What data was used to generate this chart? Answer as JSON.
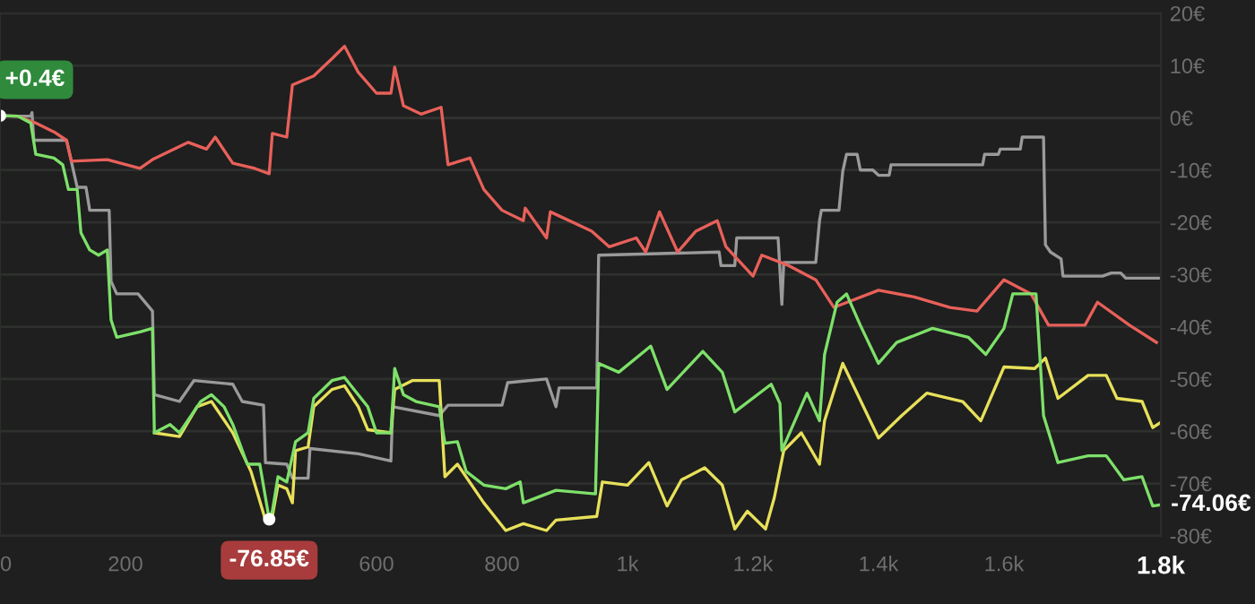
{
  "chart_data": {
    "type": "line",
    "xlim": [
      0,
      1850
    ],
    "ylim": [
      -80,
      20
    ],
    "xticks": [
      0,
      200,
      600,
      800,
      {
        "value": 1000,
        "label": "1k"
      },
      {
        "value": 1200,
        "label": "1.2k"
      },
      {
        "value": 1400,
        "label": "1.4k"
      },
      {
        "value": 1600,
        "label": "1.6k"
      },
      {
        "value": 1850,
        "label": "1.8k"
      }
    ],
    "yticks": [
      {
        "value": -80,
        "label": "-80€"
      },
      {
        "value": -70,
        "label": "-70€"
      },
      {
        "value": -60,
        "label": "-60€"
      },
      {
        "value": -50,
        "label": "-50€"
      },
      {
        "value": -40,
        "label": "-40€"
      },
      {
        "value": -30,
        "label": "-30€"
      },
      {
        "value": -20,
        "label": "-20€"
      },
      {
        "value": -10,
        "label": "-10€"
      },
      {
        "value": 0,
        "label": "0€"
      },
      {
        "value": 10,
        "label": "10€"
      },
      {
        "value": 20,
        "label": "20€"
      }
    ],
    "grid": "y",
    "marker": "none",
    "line_style": "solid",
    "annotations": [
      {
        "text": "+0.4€",
        "x": 0,
        "y": 0.4
      },
      {
        "text": "-76.85€",
        "x": 429,
        "y": -76.85
      },
      {
        "text": "-74.06€",
        "x": 1850,
        "y": -74.06
      }
    ],
    "series": [
      {
        "color": "#9a9a9a",
        "x": [
          0,
          29,
          49,
          51,
          54,
          106,
          123,
          137,
          143,
          174,
          177,
          186,
          220,
          243,
          246,
          286,
          309,
          371,
          386,
          420,
          423,
          457,
          466,
          491,
          494,
          571,
          623,
          626,
          700,
          714,
          800,
          809,
          871,
          886,
          891,
          951,
          954,
          1146,
          1149,
          1171,
          1174,
          1240,
          1246,
          1249,
          1300,
          1306,
          1309,
          1337,
          1343,
          1349,
          1366,
          1371,
          1391,
          1400,
          1417,
          1420,
          1566,
          1569,
          1591,
          1594,
          1626,
          1629,
          1663,
          1666,
          1674,
          1691,
          1694,
          1757,
          1771,
          1786,
          1794,
          1849
        ],
        "values": [
          0.4,
          0.3,
          0.3,
          1,
          -4.3,
          -4.3,
          -13.3,
          -13.3,
          -17.7,
          -17.7,
          -31.3,
          -33.7,
          -33.7,
          -37,
          -53,
          -54.3,
          -50.3,
          -51,
          -54.3,
          -55,
          -66,
          -66.3,
          -69,
          -69,
          -63.3,
          -64.3,
          -65.7,
          -55.3,
          -57,
          -55,
          -55,
          -50.7,
          -50,
          -55.3,
          -51.7,
          -51.7,
          -26.3,
          -25.7,
          -28.3,
          -28.3,
          -23,
          -23,
          -35.7,
          -27.7,
          -27.7,
          -19.7,
          -17.7,
          -17.7,
          -10.3,
          -7,
          -7,
          -10,
          -10,
          -11,
          -11,
          -9,
          -9,
          -7,
          -7,
          -6,
          -6,
          -3.7,
          -3.7,
          -24.3,
          -25.7,
          -27,
          -30.3,
          -30.3,
          -29.7,
          -29.7,
          -30.7,
          -30.7
        ]
      },
      {
        "color": "#e8605a",
        "x": [
          0,
          29,
          57,
          86,
          106,
          114,
          171,
          223,
          243,
          300,
          329,
          343,
          371,
          406,
          429,
          434,
          457,
          466,
          500,
          529,
          549,
          571,
          600,
          623,
          629,
          643,
          671,
          703,
          714,
          749,
          771,
          800,
          834,
          837,
          871,
          877,
          943,
          971,
          1014,
          1029,
          1051,
          1080,
          1109,
          1143,
          1157,
          1200,
          1214,
          1257,
          1300,
          1329,
          1400,
          1457,
          1514,
          1557,
          1600,
          1643,
          1671,
          1729,
          1749,
          1800,
          1843
        ],
        "values": [
          0.4,
          0.3,
          -1,
          -2.7,
          -4.3,
          -8.3,
          -8,
          -9.7,
          -8,
          -4.7,
          -6,
          -3.7,
          -8.7,
          -9.7,
          -10.7,
          -3,
          -3.7,
          6.3,
          8,
          11.3,
          13.7,
          8.7,
          4.7,
          4.7,
          9.7,
          2.3,
          0.7,
          2,
          -9,
          -7.7,
          -13.7,
          -17.7,
          -19.7,
          -17.3,
          -23,
          -18,
          -21.7,
          -24.7,
          -23,
          -25.7,
          -18,
          -25.7,
          -21.7,
          -19.7,
          -24.7,
          -30.3,
          -26.3,
          -28.3,
          -31,
          -36.3,
          -33,
          -34.3,
          -36.3,
          -37,
          -31,
          -33.7,
          -39.7,
          -39.7,
          -35.3,
          -39.7,
          -43
        ]
      },
      {
        "color": "#e8e05a",
        "x": [
          246,
          286,
          314,
          337,
          371,
          400,
          423,
          434,
          443,
          457,
          466,
          471,
          491,
          500,
          529,
          549,
          571,
          586,
          623,
          629,
          657,
          700,
          709,
          729,
          771,
          806,
          834,
          871,
          886,
          951,
          960,
          1000,
          1034,
          1063,
          1086,
          1123,
          1151,
          1171,
          1191,
          1220,
          1234,
          1249,
          1277,
          1306,
          1314,
          1343,
          1400,
          1437,
          1477,
          1534,
          1563,
          1600,
          1649,
          1666,
          1686,
          1734,
          1763,
          1780,
          1820,
          1837,
          1850
        ],
        "values": [
          -60.3,
          -61,
          -55.3,
          -54.3,
          -60.3,
          -67.7,
          -77,
          -76.3,
          -70.3,
          -71,
          -73.7,
          -63.7,
          -63,
          -55.3,
          -52,
          -51.3,
          -55.3,
          -59.7,
          -60.3,
          -52,
          -50.3,
          -50.3,
          -68.7,
          -66.3,
          -73.7,
          -79,
          -77.7,
          -79,
          -77,
          -76.3,
          -69.7,
          -70.3,
          -66,
          -74.3,
          -69.3,
          -67,
          -70.3,
          -78.7,
          -75.3,
          -78.7,
          -72.7,
          -63.7,
          -60.3,
          -66.3,
          -58,
          -47,
          -61.3,
          -57,
          -52.7,
          -54.3,
          -58,
          -47.7,
          -48,
          -46,
          -53.7,
          -49.3,
          -49.3,
          -53.7,
          -54.3,
          -59.3,
          -58.3
        ]
      },
      {
        "color": "#7ee06a",
        "x": [
          0,
          29,
          49,
          57,
          86,
          100,
          109,
          123,
          129,
          143,
          157,
          171,
          177,
          186,
          223,
          243,
          246,
          271,
          286,
          320,
          337,
          357,
          371,
          394,
          414,
          429,
          434,
          443,
          457,
          471,
          491,
          500,
          529,
          549,
          586,
          600,
          623,
          629,
          643,
          663,
          700,
          709,
          729,
          743,
          771,
          806,
          829,
          834,
          886,
          949,
          954,
          986,
          1037,
          1063,
          1120,
          1151,
          1171,
          1229,
          1243,
          1246,
          1286,
          1306,
          1314,
          1334,
          1349,
          1371,
          1400,
          1429,
          1486,
          1543,
          1571,
          1600,
          1614,
          1651,
          1663,
          1686,
          1734,
          1763,
          1791,
          1820,
          1837,
          1850
        ],
        "values": [
          0.4,
          0.3,
          -1,
          -7,
          -7.7,
          -9,
          -13.7,
          -13.7,
          -22,
          -25.3,
          -26.3,
          -25.3,
          -38.7,
          -42,
          -41,
          -40.3,
          -60.3,
          -58.7,
          -60.3,
          -54.3,
          -53,
          -55.3,
          -58.7,
          -66.3,
          -66.3,
          -76.85,
          -75.3,
          -68.7,
          -69.7,
          -62,
          -60.3,
          -53.7,
          -50.3,
          -49.7,
          -55.3,
          -60.3,
          -60.3,
          -48,
          -53,
          -54.3,
          -55.3,
          -62.3,
          -62,
          -67.7,
          -70.3,
          -71,
          -69.7,
          -73.7,
          -71.3,
          -72,
          -47,
          -48.7,
          -43.7,
          -52,
          -44.7,
          -48.7,
          -56.3,
          -51,
          -54.7,
          -63.7,
          -52.7,
          -58,
          -45.3,
          -35.3,
          -33.7,
          -39.7,
          -47,
          -43,
          -40.3,
          -42,
          -45.3,
          -40.3,
          -33.7,
          -33.7,
          -57,
          -66,
          -64.7,
          -64.7,
          -69.3,
          -68.7,
          -74.3,
          -74.06
        ]
      }
    ]
  }
}
